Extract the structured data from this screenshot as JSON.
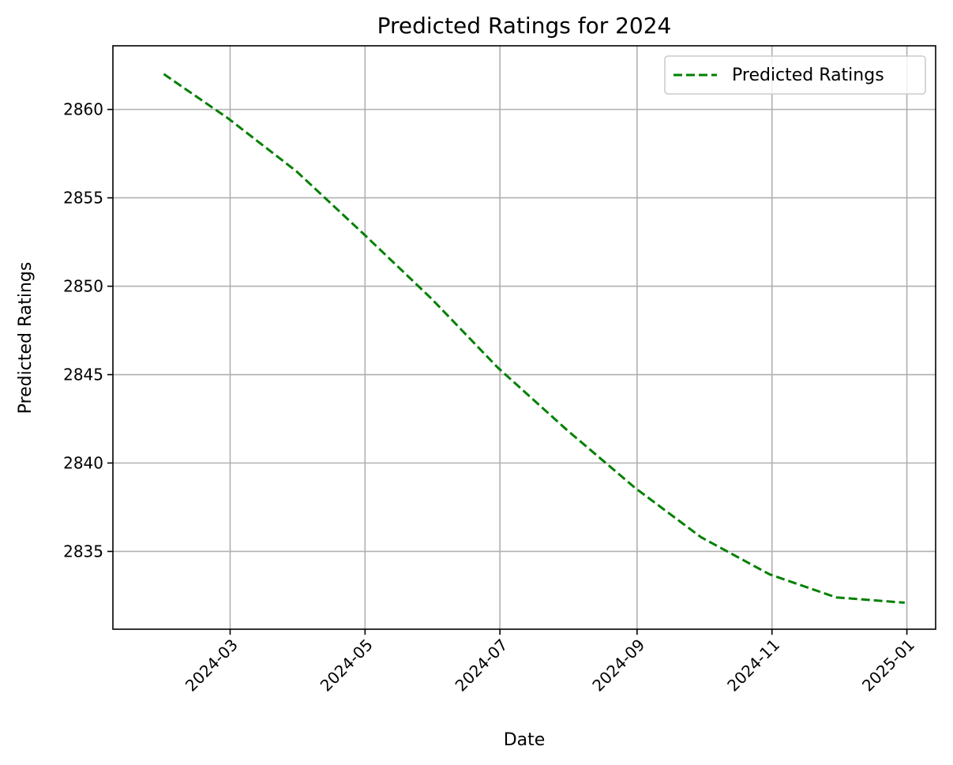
{
  "chart_data": {
    "type": "line",
    "title": "Predicted Ratings for 2024",
    "xlabel": "Date",
    "ylabel": "Predicted Ratings",
    "xlim": [
      "2024-01-08",
      "2025-01-14"
    ],
    "ylim": [
      2830.6,
      2863.6
    ],
    "x_ticks": [
      "2024-03",
      "2024-05",
      "2024-07",
      "2024-09",
      "2024-11",
      "2025-01"
    ],
    "y_ticks": [
      2835,
      2840,
      2845,
      2850,
      2855,
      2860
    ],
    "grid": true,
    "legend_position": "top-right",
    "series": [
      {
        "name": "Predicted Ratings",
        "color": "#008000",
        "line_style": "dashed",
        "x": [
          "2024-01-31",
          "2024-02-29",
          "2024-03-31",
          "2024-04-30",
          "2024-05-31",
          "2024-06-30",
          "2024-07-31",
          "2024-08-31",
          "2024-09-30",
          "2024-10-31",
          "2024-11-30",
          "2024-12-31"
        ],
        "y": [
          2862.0,
          2859.5,
          2856.5,
          2853.0,
          2849.3,
          2845.4,
          2841.9,
          2838.6,
          2835.8,
          2833.7,
          2832.4,
          2832.1
        ]
      }
    ]
  }
}
